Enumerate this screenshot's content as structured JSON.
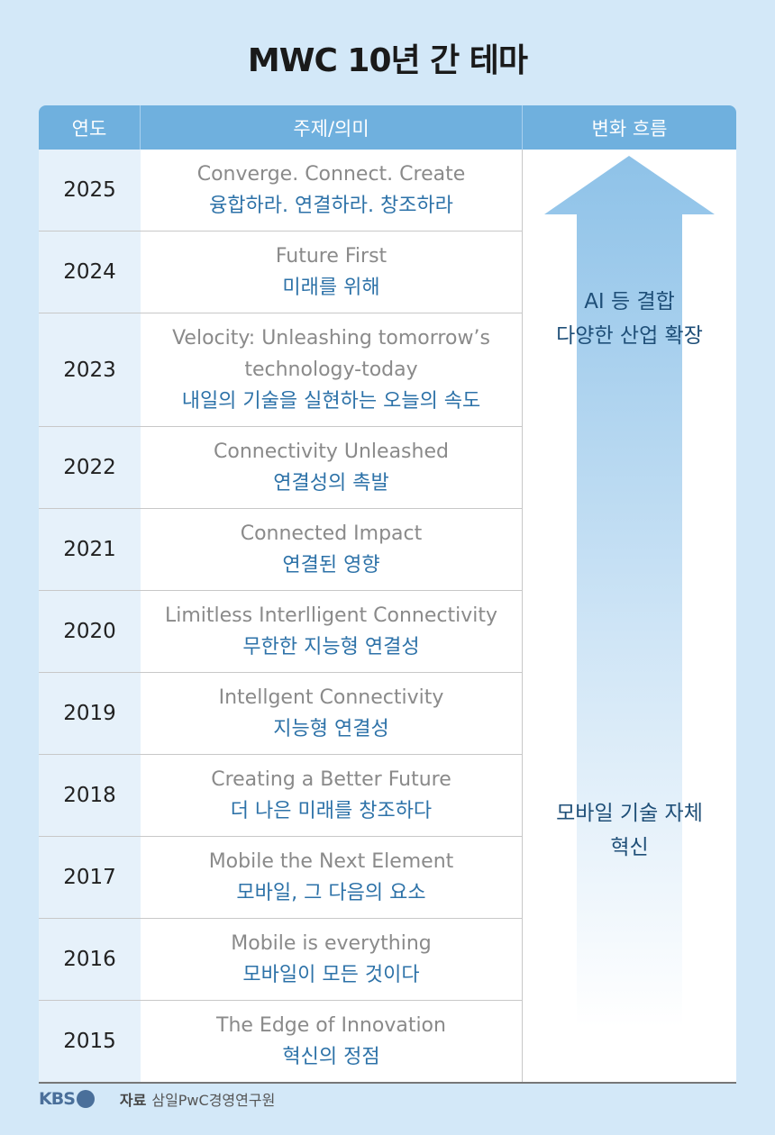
{
  "title": "MWC 10년 간 테마",
  "table": {
    "headers": [
      "연도",
      "주제/의미",
      "변화 흐름"
    ],
    "rows": [
      {
        "year": "2025",
        "en": "Converge. Connect. Create",
        "ko": "융합하라. 연결하라. 창조하라"
      },
      {
        "year": "2024",
        "en": "Future First",
        "ko": "미래를 위해"
      },
      {
        "year": "2023",
        "en": "Velocity: Unleashing tomorrow’s technology-today",
        "ko": "내일의 기술을 실현하는 오늘의 속도"
      },
      {
        "year": "2022",
        "en": "Connectivity Unleashed",
        "ko": "연결성의 촉발"
      },
      {
        "year": "2021",
        "en": "Connected Impact",
        "ko": "연결된 영향"
      },
      {
        "year": "2020",
        "en": "Limitless Interlligent Connectivity",
        "ko": "무한한 지능형 연결성"
      },
      {
        "year": "2019",
        "en": "Intellgent Connectivity",
        "ko": "지능형 연결성"
      },
      {
        "year": "2018",
        "en": "Creating a Better Future",
        "ko": "더 나은 미래를 창조하다"
      },
      {
        "year": "2017",
        "en": "Mobile the Next Element",
        "ko": "모바일, 그 다음의 요소"
      },
      {
        "year": "2016",
        "en": "Mobile is everything",
        "ko": "모바일이 모든 것이다"
      },
      {
        "year": "2015",
        "en": "The Edge of Innovation",
        "ko": "혁신의 정점"
      }
    ]
  },
  "arrow": {
    "top_label": [
      "AI 등 결합",
      "다양한 산업 확장"
    ],
    "bottom_label": [
      "모바일 기술 자체",
      "혁신"
    ]
  },
  "footer": {
    "logo": "KBS",
    "source_label": "자료",
    "source": "삼일PwC경영연구원"
  }
}
